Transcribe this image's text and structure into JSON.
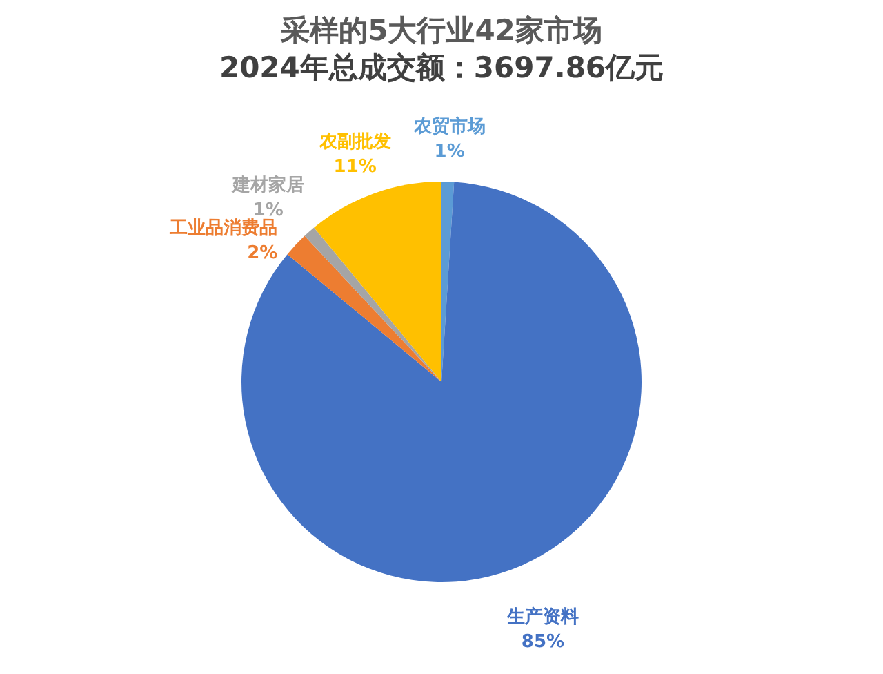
{
  "chart_data": {
    "type": "pie",
    "title": "采样的5大行业42家市场",
    "subtitle": "2024年总成交额：3697.86亿元",
    "categories": [
      "农贸市场",
      "生产资料",
      "工业品消费品",
      "建材家居",
      "农副批发"
    ],
    "values": [
      1,
      85,
      2,
      1,
      11
    ],
    "colors": [
      "#5b9bd5",
      "#4472c4",
      "#ed7d31",
      "#a5a5a5",
      "#ffc000"
    ],
    "value_labels": [
      "1%",
      "85%",
      "2%",
      "1%",
      "11%"
    ]
  }
}
